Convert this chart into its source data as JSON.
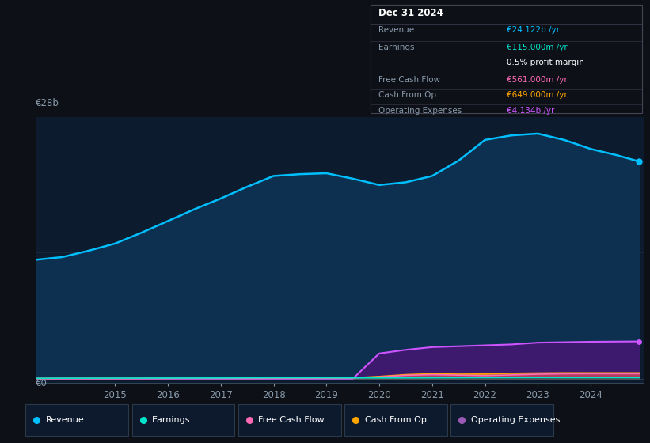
{
  "background_color": "#0d1117",
  "chart_bg_color": "#0d1b2e",
  "years": [
    2013.5,
    2014.0,
    2014.5,
    2015.0,
    2015.5,
    2016.0,
    2016.5,
    2017.0,
    2017.5,
    2018.0,
    2018.5,
    2019.0,
    2019.5,
    2020.0,
    2020.5,
    2021.0,
    2021.5,
    2022.0,
    2022.5,
    2023.0,
    2023.5,
    2024.0,
    2024.5,
    2024.92
  ],
  "revenue": [
    13.2,
    13.5,
    14.2,
    15.0,
    16.2,
    17.5,
    18.8,
    20.0,
    21.3,
    22.5,
    22.7,
    22.8,
    22.2,
    21.5,
    21.8,
    22.5,
    24.2,
    26.5,
    27.0,
    27.2,
    26.5,
    25.5,
    24.8,
    24.1
  ],
  "earnings": [
    0.04,
    0.05,
    0.05,
    0.06,
    0.06,
    0.07,
    0.07,
    0.08,
    0.09,
    0.1,
    0.1,
    0.1,
    0.09,
    0.08,
    0.09,
    0.1,
    0.11,
    0.12,
    0.12,
    0.13,
    0.12,
    0.12,
    0.12,
    0.115
  ],
  "free_cash_flow": [
    0.01,
    0.02,
    0.02,
    0.02,
    0.02,
    0.03,
    0.03,
    0.03,
    0.03,
    0.04,
    0.04,
    0.05,
    0.08,
    0.2,
    0.38,
    0.45,
    0.4,
    0.35,
    0.42,
    0.5,
    0.55,
    0.56,
    0.56,
    0.561
  ],
  "cash_from_op": [
    0.02,
    0.03,
    0.03,
    0.03,
    0.04,
    0.04,
    0.05,
    0.05,
    0.06,
    0.06,
    0.07,
    0.07,
    0.1,
    0.25,
    0.45,
    0.55,
    0.5,
    0.52,
    0.6,
    0.63,
    0.65,
    0.65,
    0.65,
    0.649
  ],
  "op_expenses": [
    0.0,
    0.0,
    0.0,
    0.0,
    0.0,
    0.0,
    0.0,
    0.0,
    0.0,
    0.0,
    0.0,
    0.0,
    0.0,
    2.8,
    3.2,
    3.5,
    3.6,
    3.7,
    3.8,
    4.0,
    4.05,
    4.1,
    4.12,
    4.134
  ],
  "revenue_color": "#00bfff",
  "earnings_color": "#00e5cc",
  "free_cash_flow_color": "#ff6eb4",
  "cash_from_op_color": "#ffa500",
  "op_expenses_color": "#cc55ff",
  "revenue_fill": "#0d3050",
  "op_expenses_fill": "#3d1a6e",
  "ytick_label_0": "€0",
  "ytick_label_28": "€28b",
  "ylim": [
    -0.5,
    29
  ],
  "xlim_start": 2013.5,
  "xlim_end": 2025.0,
  "xtick_positions": [
    2015,
    2016,
    2017,
    2018,
    2019,
    2020,
    2021,
    2022,
    2023,
    2024
  ],
  "info_box": {
    "title": "Dec 31 2024",
    "revenue_label": "Revenue",
    "revenue_value": "€24.122b /yr",
    "revenue_color": "#00bfff",
    "earnings_label": "Earnings",
    "earnings_value": "€115.000m /yr",
    "earnings_color": "#00e5cc",
    "margin_text": "0.5% profit margin",
    "fcf_label": "Free Cash Flow",
    "fcf_value": "€561.000m /yr",
    "fcf_color": "#ff69b4",
    "cfo_label": "Cash From Op",
    "cfo_value": "€649.000m /yr",
    "cfo_color": "#ffa500",
    "opex_label": "Operating Expenses",
    "opex_value": "€4.134b /yr",
    "opex_color": "#cc55ff"
  },
  "legend": [
    {
      "label": "Revenue",
      "color": "#00bfff"
    },
    {
      "label": "Earnings",
      "color": "#00e5cc"
    },
    {
      "label": "Free Cash Flow",
      "color": "#ff69b4"
    },
    {
      "label": "Cash From Op",
      "color": "#ffa500"
    },
    {
      "label": "Operating Expenses",
      "color": "#9b59b6"
    }
  ]
}
